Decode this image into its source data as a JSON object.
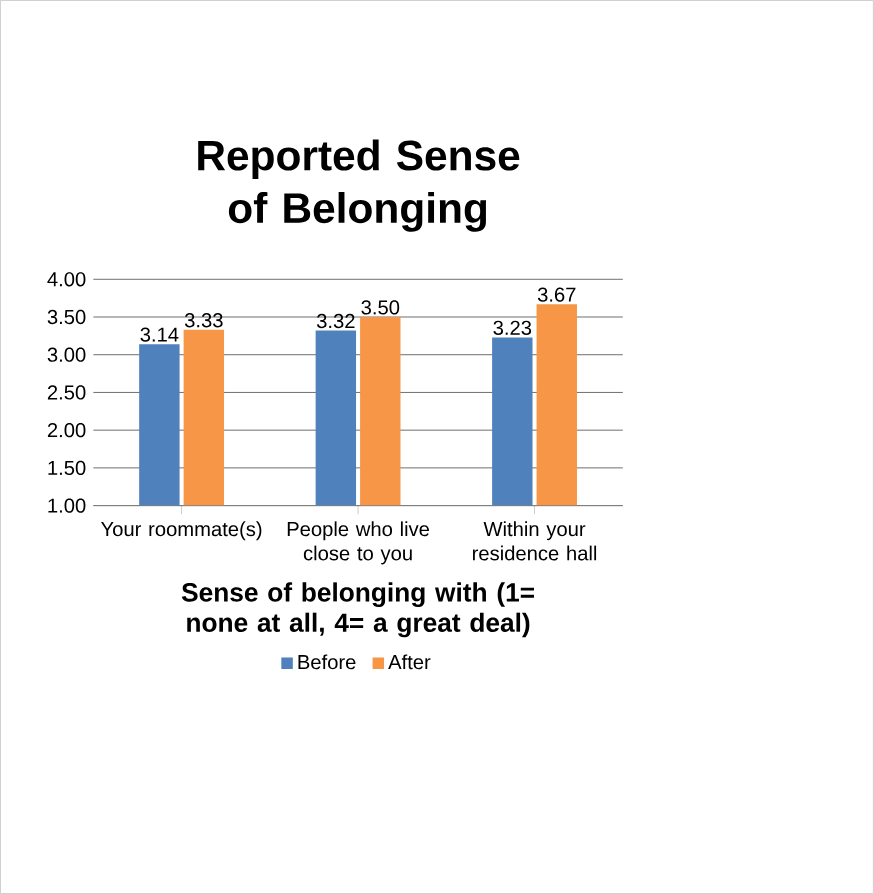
{
  "chart_data": {
    "type": "bar",
    "title": "Reported Sense of Belonging",
    "xlabel": "Sense of belonging with (1= none at all, 4= a great deal)",
    "categories": [
      "Your roommate(s)",
      "People who live close to you",
      "Within your residence hall"
    ],
    "series": [
      {
        "name": "Before",
        "color": "#4f81bd",
        "values": [
          3.14,
          3.32,
          3.23
        ],
        "value_labels": [
          "3.14",
          "3.32",
          "3.23"
        ]
      },
      {
        "name": "After",
        "color": "#f79646",
        "values": [
          3.33,
          3.5,
          3.67
        ],
        "value_labels": [
          "3.33",
          "3.50",
          "3.67"
        ]
      }
    ],
    "ylim": [
      1,
      4
    ],
    "yticks": [
      {
        "value": 1,
        "label": "1.00"
      },
      {
        "value": 1.5,
        "label": "1.50"
      },
      {
        "value": 2,
        "label": "2.00"
      },
      {
        "value": 2.5,
        "label": "2.50"
      },
      {
        "value": 3,
        "label": "3.00"
      },
      {
        "value": 3.5,
        "label": "3.50"
      },
      {
        "value": 4,
        "label": "4.00"
      }
    ],
    "grid": "y",
    "legend": "bottom"
  }
}
